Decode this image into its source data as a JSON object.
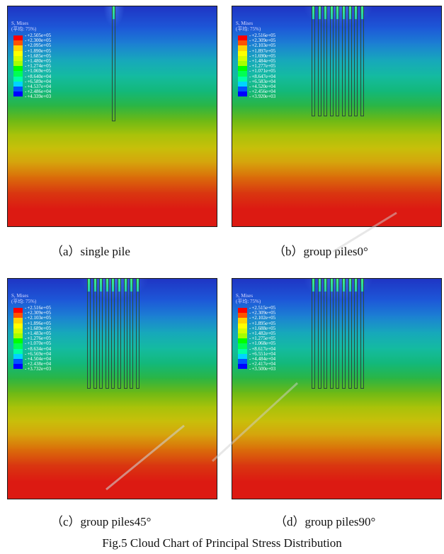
{
  "panels": [
    {
      "id": "a",
      "legend_title": "S, Mises",
      "legend_subtitle": "(平均: 75%)",
      "legend_values": [
        "+2.505e+05",
        "+2.300e+05",
        "+2.095e+05",
        "+1.890e+05",
        "+1.685e+05",
        "+1.480e+05",
        "+1.274e+05",
        "+1.069e+05",
        "+8.640e+04",
        "+6.589e+04",
        "+4.537e+04",
        "+2.486e+04",
        "+4.339e+03"
      ],
      "caption": "（a）single pile",
      "pile_count": 1
    },
    {
      "id": "b",
      "legend_title": "S, Mises",
      "legend_subtitle": "(平均: 75%)",
      "legend_values": [
        "+2.516e+05",
        "+2.309e+05",
        "+2.103e+05",
        "+1.897e+05",
        "+1.690e+05",
        "+1.484e+05",
        "+1.277e+05",
        "+1.071e+05",
        "+8.647e+04",
        "+6.583e+04",
        "+4.520e+04",
        "+2.456e+04",
        "+3.920e+03"
      ],
      "caption": "（b）group piles0°",
      "pile_count": 9
    },
    {
      "id": "c",
      "legend_title": "S, Mises",
      "legend_subtitle": "(平均: 75%)",
      "legend_values": [
        "+2.516e+05",
        "+2.309e+05",
        "+2.103e+05",
        "+1.896e+05",
        "+1.689e+05",
        "+1.483e+05",
        "+1.276e+05",
        "+1.070e+05",
        "+8.634e+04",
        "+6.569e+04",
        "+4.504e+04",
        "+2.438e+04",
        "+3.732e+03"
      ],
      "caption": "（c）group piles45°",
      "pile_count": 9
    },
    {
      "id": "d",
      "legend_title": "S, Mises",
      "legend_subtitle": "(平均: 75%)",
      "legend_values": [
        "+2.515e+05",
        "+2.309e+05",
        "+2.102e+05",
        "+1.895e+05",
        "+1.688e+05",
        "+1.482e+05",
        "+1.275e+05",
        "+1.068e+05",
        "+8.617e+04",
        "+6.551e+04",
        "+4.484e+04",
        "+2.417e+04",
        "+3.500e+03"
      ],
      "caption": "（d）group piles90°",
      "pile_count": 9
    }
  ],
  "figure_title": "Fig.5 Cloud Chart of Principal Stress Distribution",
  "colors": {
    "contour_scale": [
      "#ff0000",
      "#ff5300",
      "#ffa500",
      "#ffd400",
      "#ffff00",
      "#d4ff00",
      "#a5ff00",
      "#53ff00",
      "#00ff00",
      "#00ff53",
      "#00ffa5",
      "#00d4ff",
      "#00a5ff",
      "#0053ff",
      "#0000ff"
    ],
    "soil_bands": [
      "#1f35c4",
      "#1d58d8",
      "#1c7fd3",
      "#17a7bc",
      "#14bba0",
      "#13b878",
      "#2bb544",
      "#6cb916",
      "#a7c20a",
      "#c8bf0a",
      "#d6a30c",
      "#da6e0a",
      "#d93810",
      "#dc1a12"
    ],
    "watermark": "#c8c8c8"
  }
}
